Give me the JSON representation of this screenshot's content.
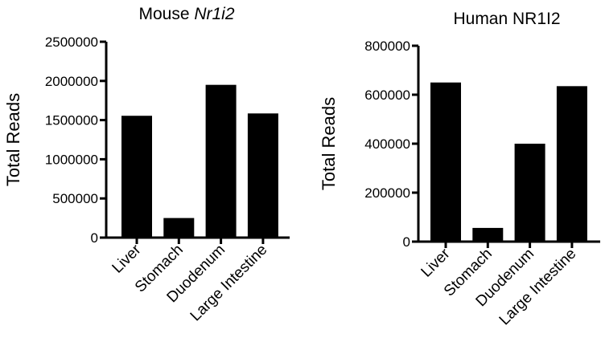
{
  "chart_data": [
    {
      "type": "bar",
      "title": "Mouse ",
      "title_italic": "Nr1i2",
      "ylabel": "Total Reads",
      "xlabel": "",
      "categories": [
        "Liver",
        "Stomach",
        "Duodenum",
        "Large Intestine"
      ],
      "values": [
        1555000,
        250000,
        1950000,
        1585000
      ],
      "ylim": [
        0,
        2500000
      ],
      "yticks": [
        0,
        500000,
        1000000,
        1500000,
        2000000,
        2500000
      ],
      "bar_color": "#000000",
      "grid": false
    },
    {
      "type": "bar",
      "title": "Human NR1I2",
      "ylabel": "Total Reads",
      "xlabel": "",
      "categories": [
        "Liver",
        "Stomach",
        "Duodenum",
        "Large Intestine"
      ],
      "values": [
        650000,
        56000,
        400000,
        635000
      ],
      "ylim": [
        0,
        800000
      ],
      "yticks": [
        0,
        200000,
        400000,
        600000,
        800000
      ],
      "bar_color": "#000000",
      "grid": false
    }
  ]
}
